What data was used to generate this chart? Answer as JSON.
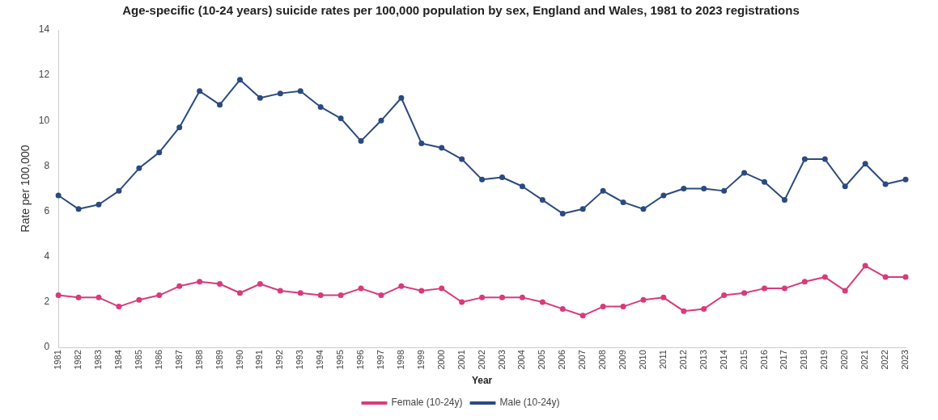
{
  "chart_data": {
    "type": "line",
    "title": "Age-specific (10-24 years) suicide rates per 100,000 population by sex, England and Wales, 1981 to 2023 registrations",
    "xlabel": "Year",
    "ylabel": "Rate per 100,000",
    "categories": [
      "1981",
      "1982",
      "1983",
      "1984",
      "1985",
      "1986",
      "1987",
      "1988",
      "1989",
      "1990",
      "1991",
      "1992",
      "1993",
      "1994",
      "1995",
      "1996",
      "1997",
      "1998",
      "1999",
      "2000",
      "2001",
      "2002",
      "2003",
      "2004",
      "2005",
      "2006",
      "2007",
      "2008",
      "2009",
      "2010",
      "2011",
      "2012",
      "2013",
      "2014",
      "2015",
      "2016",
      "2017",
      "2018",
      "2019",
      "2020",
      "2021",
      "2022",
      "2023"
    ],
    "series": [
      {
        "name": "Female (10-24y)",
        "color": "#d83b7c",
        "values": [
          2.3,
          2.2,
          2.2,
          1.8,
          2.1,
          2.3,
          2.7,
          2.9,
          2.8,
          2.4,
          2.8,
          2.5,
          2.4,
          2.3,
          2.3,
          2.6,
          2.3,
          2.7,
          2.5,
          2.6,
          2.0,
          2.2,
          2.2,
          2.2,
          2.0,
          1.7,
          1.4,
          1.8,
          1.8,
          2.1,
          2.2,
          1.6,
          1.7,
          2.3,
          2.4,
          2.6,
          2.6,
          2.9,
          3.1,
          2.5,
          3.6,
          3.1,
          3.1
        ]
      },
      {
        "name": "Male (10-24y)",
        "color": "#2b4a80",
        "values": [
          6.7,
          6.1,
          6.3,
          6.9,
          7.9,
          8.6,
          9.7,
          11.3,
          10.7,
          11.8,
          11.0,
          11.2,
          11.3,
          10.6,
          10.1,
          9.1,
          10.0,
          11.0,
          9.0,
          8.8,
          8.3,
          7.4,
          7.5,
          7.1,
          6.5,
          5.9,
          6.1,
          6.9,
          6.4,
          6.1,
          6.7,
          7.0,
          7.0,
          6.9,
          7.7,
          7.3,
          6.5,
          8.3,
          8.3,
          7.1,
          8.1,
          7.2,
          7.4
        ]
      }
    ],
    "ylim": [
      0,
      14
    ],
    "yticks": [
      0,
      2,
      4,
      6,
      8,
      10,
      12,
      14
    ],
    "grid": false,
    "legend": "bottom",
    "marker": "circle",
    "line_style": "solid"
  }
}
